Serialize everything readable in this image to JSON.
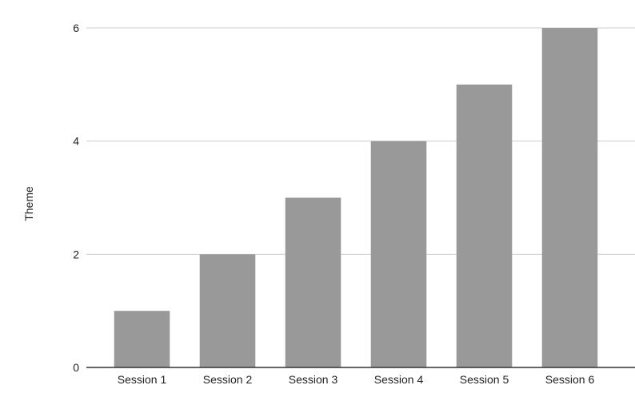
{
  "chart_data": {
    "type": "bar",
    "title": "",
    "xlabel": "",
    "ylabel": "Theme",
    "categories": [
      "Session 1",
      "Session 2",
      "Session 3",
      "Session 4",
      "Session 5",
      "Session 6"
    ],
    "values": [
      1,
      2,
      3,
      4,
      5,
      6
    ],
    "ylim": [
      0,
      6
    ],
    "yticks": [
      "0",
      "2",
      "4",
      "6"
    ],
    "grid": true,
    "legend": "none",
    "colors": {
      "bar": "#999999",
      "grid": "#cccccc",
      "axis": "#333333",
      "text": "#222222"
    }
  }
}
